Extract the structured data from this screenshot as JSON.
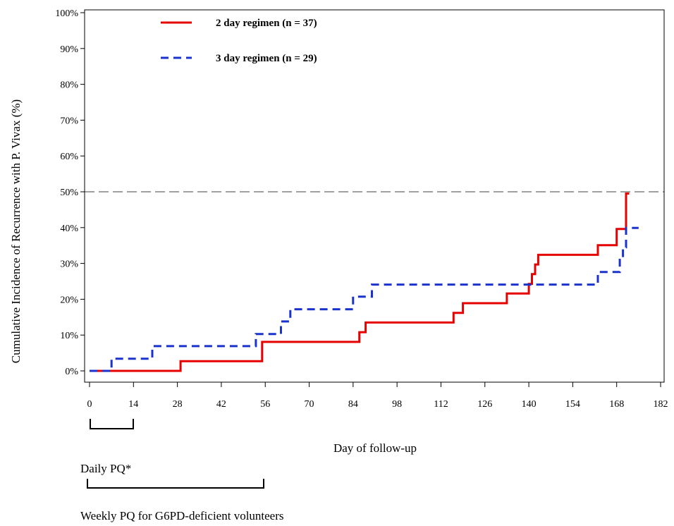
{
  "chart_data": {
    "type": "line",
    "title": "",
    "xlabel": "Day of follow-up",
    "ylabel": "Cumulative Incidence of Recurrence with P. Vivax (%)",
    "xlim": [
      0,
      182
    ],
    "ylim": [
      0,
      100
    ],
    "x_ticks": [
      "0",
      "14",
      "28",
      "42",
      "56",
      "70",
      "84",
      "98",
      "112",
      "126",
      "140",
      "154",
      "168",
      "182"
    ],
    "y_ticks": [
      "0%",
      "10%",
      "20%",
      "30%",
      "40%",
      "50%",
      "60%",
      "70%",
      "80%",
      "90%",
      "100%"
    ],
    "reference_line": {
      "y": 50,
      "style": "dashed",
      "color": "#808080"
    },
    "legend_position": "top-left",
    "series": [
      {
        "name": "2 day regimen (n = 37)",
        "color": "#e60000",
        "style": "solid",
        "step": true,
        "points": [
          [
            0,
            0
          ],
          [
            29,
            0
          ],
          [
            29,
            2.7
          ],
          [
            55,
            2.7
          ],
          [
            55,
            8.1
          ],
          [
            86,
            8.1
          ],
          [
            86,
            10.8
          ],
          [
            88,
            10.8
          ],
          [
            88,
            13.5
          ],
          [
            116,
            13.5
          ],
          [
            116,
            16.2
          ],
          [
            119,
            16.2
          ],
          [
            119,
            18.9
          ],
          [
            133,
            18.9
          ],
          [
            133,
            21.6
          ],
          [
            140,
            21.6
          ],
          [
            140,
            24.3
          ],
          [
            141,
            24.3
          ],
          [
            141,
            27.0
          ],
          [
            142,
            27.0
          ],
          [
            142,
            29.7
          ],
          [
            143,
            29.7
          ],
          [
            143,
            32.4
          ],
          [
            162,
            32.4
          ],
          [
            162,
            35.1
          ],
          [
            168,
            35.1
          ],
          [
            168,
            39.6
          ],
          [
            171,
            39.6
          ],
          [
            171,
            49.5
          ],
          [
            172,
            49.5
          ]
        ]
      },
      {
        "name": "3 day regimen (n = 29)",
        "color": "#1a33cc",
        "style": "dashed",
        "step": true,
        "points": [
          [
            0,
            0
          ],
          [
            7,
            0
          ],
          [
            7,
            3.4
          ],
          [
            20,
            3.4
          ],
          [
            20,
            6.9
          ],
          [
            53,
            6.9
          ],
          [
            53,
            10.3
          ],
          [
            61,
            10.3
          ],
          [
            61,
            13.8
          ],
          [
            64,
            13.8
          ],
          [
            64,
            17.2
          ],
          [
            84,
            17.2
          ],
          [
            84,
            20.7
          ],
          [
            90,
            20.7
          ],
          [
            90,
            24.1
          ],
          [
            162,
            24.1
          ],
          [
            162,
            27.6
          ],
          [
            169,
            27.6
          ],
          [
            169,
            31.0
          ],
          [
            170,
            31.0
          ],
          [
            170,
            34.5
          ],
          [
            171,
            34.5
          ],
          [
            171,
            39.9
          ],
          [
            175,
            39.9
          ]
        ]
      }
    ],
    "annotations": [
      {
        "label": "Daily PQ*",
        "from_day": 0,
        "to_day": 14
      },
      {
        "label": "Weekly PQ for G6PD-deficient volunteers",
        "from_day": 0,
        "to_day": 56
      }
    ]
  }
}
